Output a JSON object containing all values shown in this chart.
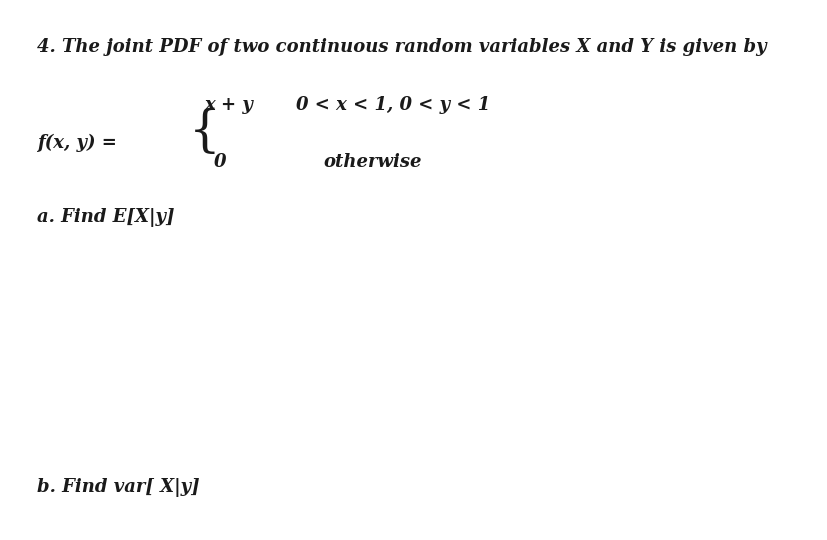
{
  "background_color": "#ffffff",
  "title_text": "4. The joint PDF of two continuous random variables X and Y is given by",
  "title_fontsize": 13.0,
  "fxy_label_plain": "f(x, y) =",
  "fxy_fontsize": 13.0,
  "case1_plain": "x + y",
  "case1_cond": "0 < x < 1, 0 < y < 1",
  "case1_fontsize": 13.0,
  "case2_val": "0",
  "case2_otherwise": "otherwise",
  "case2_fontsize": 13.0,
  "parta_text": "a. Find E[X|y]",
  "parta_fontsize": 13.0,
  "partb_text": "b. Find var[ X|y]",
  "partb_fontsize": 13.0,
  "brace_fontsize": 36,
  "text_color": "#1a1a1a"
}
